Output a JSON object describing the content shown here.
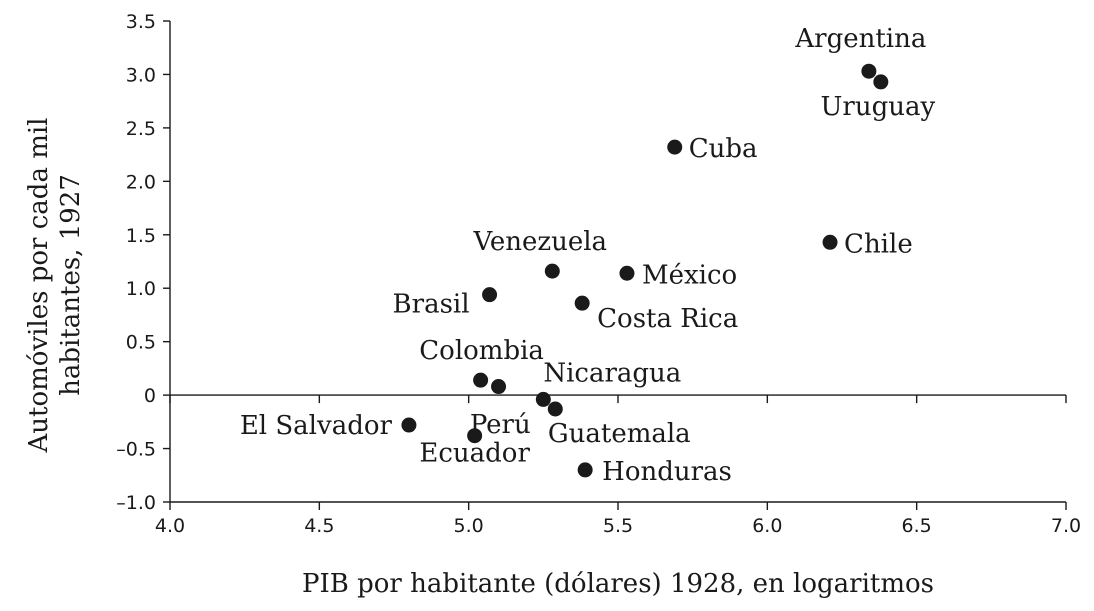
{
  "chart_data": {
    "type": "scatter",
    "title": "",
    "xlabel": "PIB por habitante (dólares) 1928, en logaritmos",
    "ylabel_lines": [
      "Automóviles por cada mil",
      "habitantes, 1927"
    ],
    "xlim": [
      4.0,
      7.0
    ],
    "ylim": [
      -1.0,
      3.5
    ],
    "x_ticks": [
      4.0,
      4.5,
      5.0,
      5.5,
      6.0,
      6.5,
      7.0
    ],
    "x_tick_labels": [
      "4.0",
      "4.5",
      "5.0",
      "5.5",
      "6.0",
      "6.5",
      "7.0"
    ],
    "y_ticks": [
      -1.0,
      -0.5,
      0,
      0.5,
      1.0,
      1.5,
      2.0,
      2.5,
      3.0,
      3.5
    ],
    "y_tick_labels": [
      "–1.0",
      "–0.5",
      "0",
      "0.5",
      "1.0",
      "1.5",
      "2.0",
      "2.5",
      "3.0",
      "3.5"
    ],
    "x_axis_at_y": 0,
    "grid": false,
    "points": [
      {
        "label": "Argentina",
        "x": 6.34,
        "y": 3.03
      },
      {
        "label": "Uruguay",
        "x": 6.38,
        "y": 2.93
      },
      {
        "label": "Cuba",
        "x": 5.69,
        "y": 2.32
      },
      {
        "label": "Chile",
        "x": 6.21,
        "y": 1.43
      },
      {
        "label": "Venezuela",
        "x": 5.28,
        "y": 1.16
      },
      {
        "label": "México",
        "x": 5.53,
        "y": 1.14
      },
      {
        "label": "Brasil",
        "x": 5.07,
        "y": 0.94
      },
      {
        "label": "Costa Rica",
        "x": 5.38,
        "y": 0.86
      },
      {
        "label": "Colombia",
        "x": 5.04,
        "y": 0.14
      },
      {
        "label": "",
        "x": 5.1,
        "y": 0.08
      },
      {
        "label": "Nicaragua",
        "x": 5.25,
        "y": -0.04
      },
      {
        "label": "Perú",
        "x": 5.29,
        "y": -0.13
      },
      {
        "label": "Guatemala",
        "x": 5.29,
        "y": -0.13
      },
      {
        "label": "El Salvador",
        "x": 4.8,
        "y": -0.28
      },
      {
        "label": "Ecuador",
        "x": 5.02,
        "y": -0.38
      },
      {
        "label": "Honduras",
        "x": 5.39,
        "y": -0.7
      }
    ]
  }
}
